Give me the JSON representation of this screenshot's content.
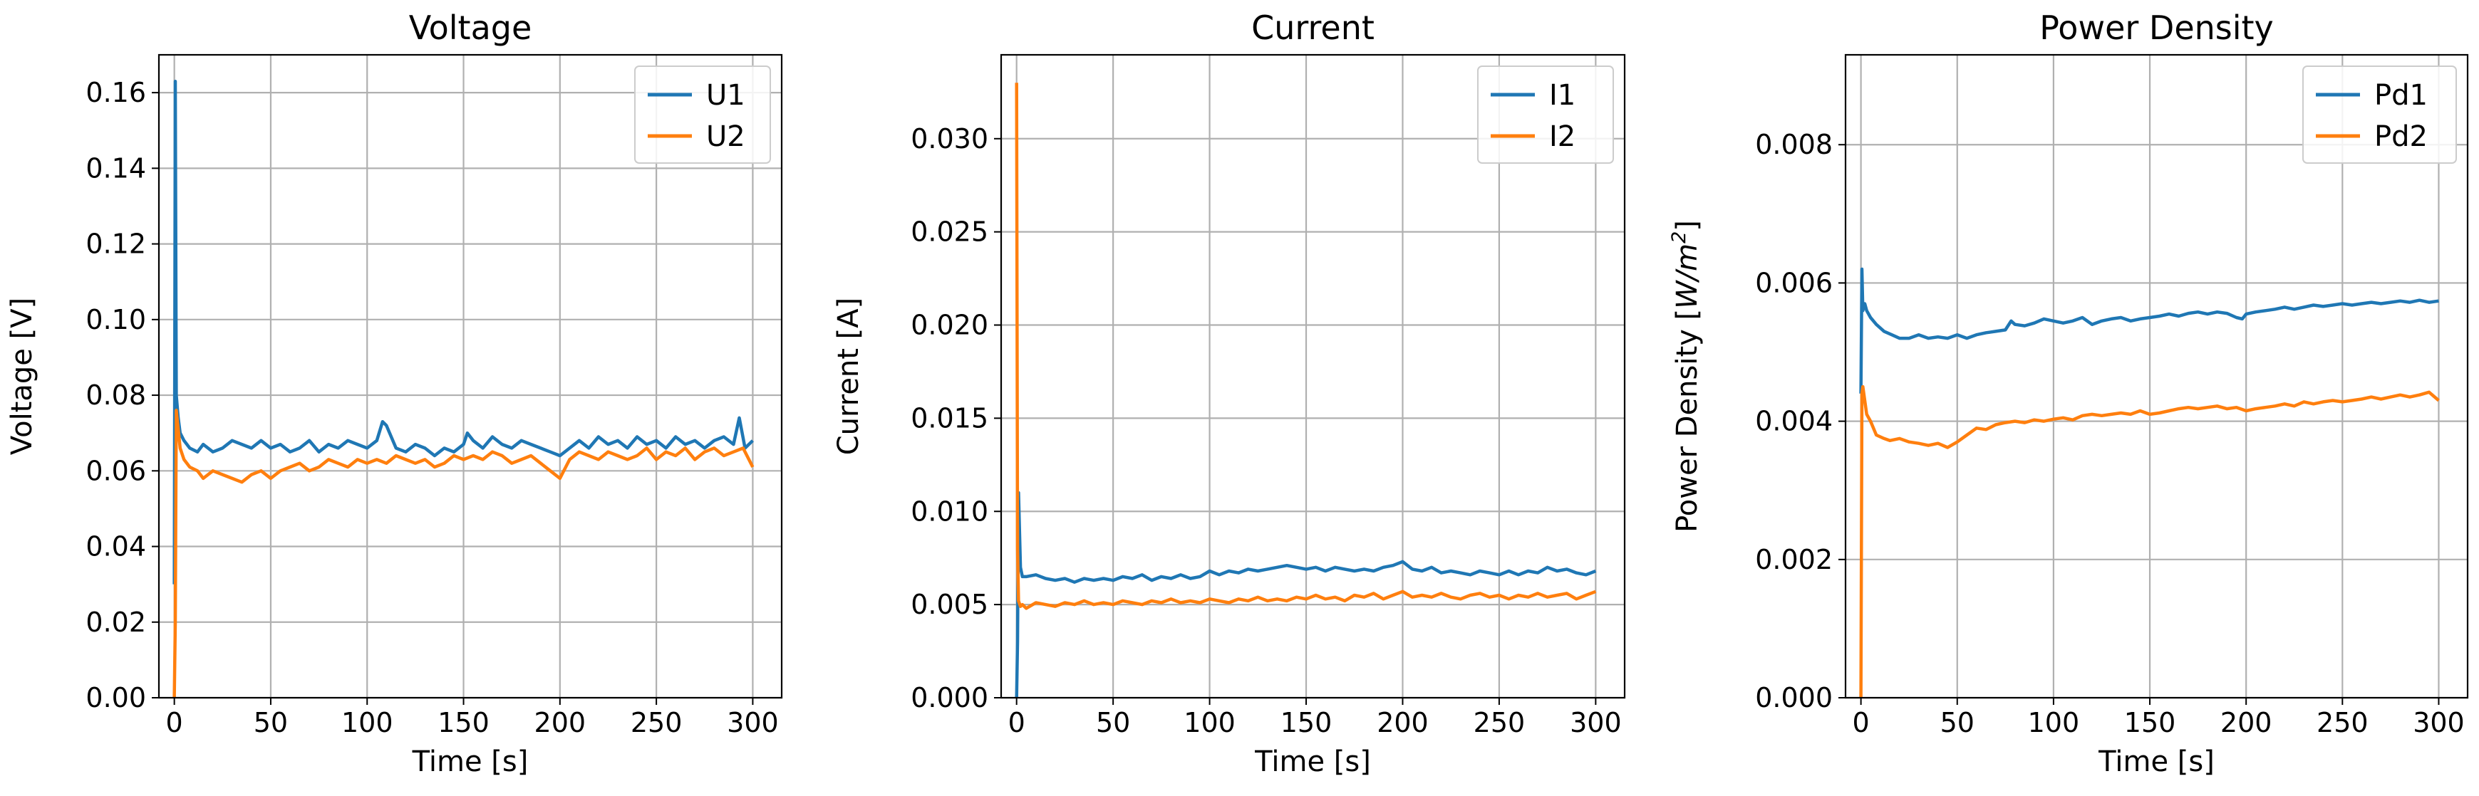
{
  "chart_data": [
    {
      "type": "line",
      "title": "Voltage",
      "xlabel": "Time [s]",
      "ylabel": "Voltage [V]",
      "xlim": [
        -8,
        315
      ],
      "ylim": [
        0,
        0.17
      ],
      "xticks": [
        0,
        50,
        100,
        150,
        200,
        250,
        300
      ],
      "xtick_labels": [
        "0",
        "50",
        "100",
        "150",
        "200",
        "250",
        "300"
      ],
      "yticks": [
        0,
        0.02,
        0.04,
        0.06,
        0.08,
        0.1,
        0.12,
        0.14,
        0.16
      ],
      "ytick_labels": [
        "0.00",
        "0.02",
        "0.04",
        "0.06",
        "0.08",
        "0.10",
        "0.12",
        "0.14",
        "0.16"
      ],
      "grid": true,
      "legend_position": "top-right",
      "series": [
        {
          "name": "U1",
          "color": "#1f77b4",
          "x": [
            0,
            0.5,
            1,
            2,
            3,
            5,
            8,
            12,
            15,
            20,
            25,
            30,
            35,
            40,
            45,
            50,
            55,
            60,
            65,
            70,
            75,
            80,
            85,
            90,
            95,
            100,
            105,
            108,
            110,
            115,
            120,
            125,
            130,
            135,
            140,
            145,
            150,
            152,
            155,
            160,
            165,
            170,
            175,
            180,
            185,
            190,
            195,
            200,
            205,
            210,
            215,
            220,
            225,
            230,
            235,
            240,
            245,
            250,
            255,
            260,
            265,
            270,
            275,
            280,
            285,
            290,
            293,
            296,
            300
          ],
          "y": [
            0.03,
            0.163,
            0.08,
            0.074,
            0.07,
            0.068,
            0.066,
            0.065,
            0.067,
            0.065,
            0.066,
            0.068,
            0.067,
            0.066,
            0.068,
            0.066,
            0.067,
            0.065,
            0.066,
            0.068,
            0.065,
            0.067,
            0.066,
            0.068,
            0.067,
            0.066,
            0.068,
            0.073,
            0.072,
            0.066,
            0.065,
            0.067,
            0.066,
            0.064,
            0.066,
            0.065,
            0.067,
            0.07,
            0.068,
            0.066,
            0.069,
            0.067,
            0.066,
            0.068,
            0.067,
            0.066,
            0.065,
            0.064,
            0.066,
            0.068,
            0.066,
            0.069,
            0.067,
            0.068,
            0.066,
            0.069,
            0.067,
            0.068,
            0.066,
            0.069,
            0.067,
            0.068,
            0.066,
            0.068,
            0.069,
            0.067,
            0.074,
            0.066,
            0.068
          ]
        },
        {
          "name": "U2",
          "color": "#ff7f0e",
          "x": [
            0,
            0.5,
            1,
            2,
            3,
            5,
            8,
            12,
            15,
            20,
            25,
            30,
            35,
            40,
            45,
            50,
            55,
            60,
            65,
            70,
            75,
            80,
            85,
            90,
            95,
            100,
            105,
            110,
            115,
            120,
            125,
            130,
            135,
            140,
            145,
            150,
            155,
            160,
            165,
            170,
            175,
            180,
            185,
            190,
            195,
            200,
            205,
            210,
            215,
            220,
            225,
            230,
            235,
            240,
            245,
            250,
            255,
            260,
            265,
            270,
            275,
            280,
            285,
            290,
            295,
            300
          ],
          "y": [
            0.0,
            0.02,
            0.076,
            0.071,
            0.066,
            0.063,
            0.061,
            0.06,
            0.058,
            0.06,
            0.059,
            0.058,
            0.057,
            0.059,
            0.06,
            0.058,
            0.06,
            0.061,
            0.062,
            0.06,
            0.061,
            0.063,
            0.062,
            0.061,
            0.063,
            0.062,
            0.063,
            0.062,
            0.064,
            0.063,
            0.062,
            0.063,
            0.061,
            0.062,
            0.064,
            0.063,
            0.064,
            0.063,
            0.065,
            0.064,
            0.062,
            0.063,
            0.064,
            0.062,
            0.06,
            0.058,
            0.063,
            0.065,
            0.064,
            0.063,
            0.065,
            0.064,
            0.063,
            0.064,
            0.066,
            0.063,
            0.065,
            0.064,
            0.066,
            0.063,
            0.065,
            0.066,
            0.064,
            0.065,
            0.066,
            0.061
          ]
        }
      ]
    },
    {
      "type": "line",
      "title": "Current",
      "xlabel": "Time [s]",
      "ylabel": "Current [A]",
      "xlim": [
        -8,
        315
      ],
      "ylim": [
        0,
        0.0345
      ],
      "xticks": [
        0,
        50,
        100,
        150,
        200,
        250,
        300
      ],
      "xtick_labels": [
        "0",
        "50",
        "100",
        "150",
        "200",
        "250",
        "300"
      ],
      "yticks": [
        0,
        0.005,
        0.01,
        0.015,
        0.02,
        0.025,
        0.03
      ],
      "ytick_labels": [
        "0.000",
        "0.005",
        "0.010",
        "0.015",
        "0.020",
        "0.025",
        "0.030"
      ],
      "grid": true,
      "legend_position": "top-right",
      "series": [
        {
          "name": "I1",
          "color": "#1f77b4",
          "x": [
            0,
            0.5,
            1,
            2,
            3,
            5,
            10,
            15,
            20,
            25,
            30,
            35,
            40,
            45,
            50,
            55,
            60,
            65,
            70,
            75,
            80,
            85,
            90,
            95,
            100,
            105,
            110,
            115,
            120,
            125,
            130,
            135,
            140,
            145,
            150,
            155,
            160,
            165,
            170,
            175,
            180,
            185,
            190,
            195,
            200,
            205,
            210,
            215,
            220,
            225,
            230,
            235,
            240,
            245,
            250,
            255,
            260,
            265,
            270,
            275,
            280,
            285,
            290,
            295,
            300
          ],
          "y": [
            0.0,
            0.003,
            0.011,
            0.007,
            0.0065,
            0.0065,
            0.0066,
            0.0064,
            0.0063,
            0.0064,
            0.0062,
            0.0064,
            0.0063,
            0.0064,
            0.0063,
            0.0065,
            0.0064,
            0.0066,
            0.0063,
            0.0065,
            0.0064,
            0.0066,
            0.0064,
            0.0065,
            0.0068,
            0.0066,
            0.0068,
            0.0067,
            0.0069,
            0.0068,
            0.0069,
            0.007,
            0.0071,
            0.007,
            0.0069,
            0.007,
            0.0068,
            0.007,
            0.0069,
            0.0068,
            0.0069,
            0.0068,
            0.007,
            0.0071,
            0.0073,
            0.0069,
            0.0068,
            0.007,
            0.0067,
            0.0068,
            0.0067,
            0.0066,
            0.0068,
            0.0067,
            0.0066,
            0.0068,
            0.0066,
            0.0068,
            0.0067,
            0.007,
            0.0068,
            0.0069,
            0.0067,
            0.0066,
            0.0068
          ]
        },
        {
          "name": "I2",
          "color": "#ff7f0e",
          "x": [
            0,
            0.5,
            1,
            2,
            3,
            5,
            10,
            15,
            20,
            25,
            30,
            35,
            40,
            45,
            50,
            55,
            60,
            65,
            70,
            75,
            80,
            85,
            90,
            95,
            100,
            105,
            110,
            115,
            120,
            125,
            130,
            135,
            140,
            145,
            150,
            155,
            160,
            165,
            170,
            175,
            180,
            185,
            190,
            195,
            200,
            205,
            210,
            215,
            220,
            225,
            230,
            235,
            240,
            245,
            250,
            255,
            260,
            265,
            270,
            275,
            280,
            285,
            290,
            295,
            300
          ],
          "y": [
            0.033,
            0.008,
            0.0052,
            0.0049,
            0.005,
            0.0048,
            0.0051,
            0.005,
            0.0049,
            0.0051,
            0.005,
            0.0052,
            0.005,
            0.0051,
            0.005,
            0.0052,
            0.0051,
            0.005,
            0.0052,
            0.0051,
            0.0053,
            0.0051,
            0.0052,
            0.0051,
            0.0053,
            0.0052,
            0.0051,
            0.0053,
            0.0052,
            0.0054,
            0.0052,
            0.0053,
            0.0052,
            0.0054,
            0.0053,
            0.0055,
            0.0053,
            0.0054,
            0.0052,
            0.0055,
            0.0054,
            0.0056,
            0.0053,
            0.0055,
            0.0057,
            0.0054,
            0.0055,
            0.0054,
            0.0056,
            0.0054,
            0.0053,
            0.0055,
            0.0056,
            0.0054,
            0.0055,
            0.0053,
            0.0055,
            0.0054,
            0.0056,
            0.0054,
            0.0055,
            0.0056,
            0.0053,
            0.0055,
            0.0057
          ]
        }
      ]
    },
    {
      "type": "line",
      "title": "Power Density",
      "xlabel": "Time [s]",
      "ylabel_parts": [
        "Power Density [",
        "W/m",
        "2",
        "]"
      ],
      "xlim": [
        -8,
        315
      ],
      "ylim": [
        0,
        0.0093
      ],
      "xticks": [
        0,
        50,
        100,
        150,
        200,
        250,
        300
      ],
      "xtick_labels": [
        "0",
        "50",
        "100",
        "150",
        "200",
        "250",
        "300"
      ],
      "yticks": [
        0,
        0.002,
        0.004,
        0.006,
        0.008
      ],
      "ytick_labels": [
        "0.000",
        "0.002",
        "0.004",
        "0.006",
        "0.008"
      ],
      "grid": true,
      "legend_position": "top-right",
      "series": [
        {
          "name": "Pd1",
          "color": "#1f77b4",
          "x": [
            0,
            0.5,
            1,
            2,
            3,
            5,
            8,
            12,
            16,
            20,
            25,
            30,
            35,
            40,
            45,
            50,
            55,
            60,
            65,
            70,
            75,
            78,
            80,
            85,
            90,
            95,
            100,
            105,
            110,
            115,
            120,
            125,
            130,
            135,
            140,
            145,
            150,
            155,
            160,
            165,
            170,
            175,
            180,
            185,
            190,
            195,
            198,
            200,
            205,
            210,
            215,
            220,
            225,
            230,
            235,
            240,
            245,
            250,
            255,
            260,
            265,
            270,
            275,
            280,
            285,
            290,
            295,
            300
          ],
          "y": [
            0.0044,
            0.0062,
            0.0056,
            0.0057,
            0.0056,
            0.0055,
            0.0054,
            0.0053,
            0.00525,
            0.0052,
            0.0052,
            0.00525,
            0.0052,
            0.00522,
            0.0052,
            0.00525,
            0.0052,
            0.00525,
            0.00528,
            0.0053,
            0.00532,
            0.00545,
            0.0054,
            0.00538,
            0.00542,
            0.00548,
            0.00545,
            0.00542,
            0.00545,
            0.0055,
            0.0054,
            0.00545,
            0.00548,
            0.0055,
            0.00545,
            0.00548,
            0.0055,
            0.00552,
            0.00555,
            0.00552,
            0.00556,
            0.00558,
            0.00555,
            0.00558,
            0.00556,
            0.0055,
            0.00548,
            0.00555,
            0.00558,
            0.0056,
            0.00562,
            0.00565,
            0.00562,
            0.00565,
            0.00568,
            0.00566,
            0.00568,
            0.0057,
            0.00568,
            0.0057,
            0.00572,
            0.0057,
            0.00572,
            0.00574,
            0.00572,
            0.00575,
            0.00572,
            0.00574
          ]
        },
        {
          "name": "Pd2",
          "color": "#ff7f0e",
          "x": [
            0,
            0.5,
            1,
            2,
            3,
            5,
            8,
            12,
            15,
            20,
            25,
            30,
            35,
            40,
            45,
            50,
            55,
            60,
            65,
            70,
            75,
            80,
            85,
            90,
            95,
            100,
            105,
            110,
            115,
            120,
            125,
            130,
            135,
            140,
            145,
            150,
            155,
            160,
            165,
            170,
            175,
            180,
            185,
            190,
            195,
            200,
            205,
            210,
            215,
            220,
            225,
            230,
            235,
            240,
            245,
            250,
            255,
            260,
            265,
            270,
            275,
            280,
            285,
            290,
            295,
            300
          ],
          "y": [
            0.0,
            0.0044,
            0.0045,
            0.0043,
            0.0041,
            0.004,
            0.0038,
            0.00375,
            0.00372,
            0.00375,
            0.0037,
            0.00368,
            0.00365,
            0.00368,
            0.00362,
            0.0037,
            0.0038,
            0.0039,
            0.00388,
            0.00395,
            0.00398,
            0.004,
            0.00398,
            0.00402,
            0.004,
            0.00403,
            0.00405,
            0.00402,
            0.00408,
            0.0041,
            0.00408,
            0.0041,
            0.00412,
            0.0041,
            0.00415,
            0.0041,
            0.00412,
            0.00415,
            0.00418,
            0.0042,
            0.00418,
            0.0042,
            0.00422,
            0.00418,
            0.0042,
            0.00415,
            0.00418,
            0.0042,
            0.00422,
            0.00425,
            0.00422,
            0.00428,
            0.00425,
            0.00428,
            0.0043,
            0.00428,
            0.0043,
            0.00432,
            0.00435,
            0.00432,
            0.00435,
            0.00438,
            0.00435,
            0.00438,
            0.00442,
            0.0043
          ]
        }
      ]
    }
  ]
}
